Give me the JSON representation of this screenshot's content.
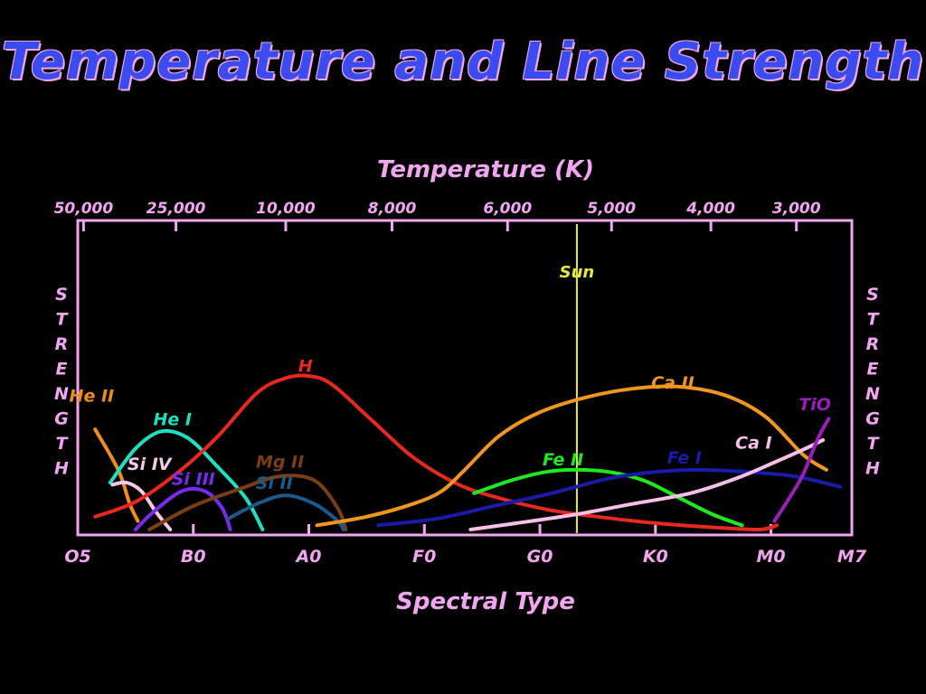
{
  "title": "Temperature and Line Strength",
  "chart_data": {
    "type": "line",
    "title": "Temperature and Line Strength",
    "top_axis_label": "Temperature (K)",
    "xlabel": "Spectral Type",
    "ylabel": "STRENGTH",
    "spectral_ticks": [
      {
        "label": "O5",
        "x": 0
      },
      {
        "label": "B0",
        "x": 1
      },
      {
        "label": "A0",
        "x": 2
      },
      {
        "label": "F0",
        "x": 3
      },
      {
        "label": "G0",
        "x": 4
      },
      {
        "label": "K0",
        "x": 5
      },
      {
        "label": "M0",
        "x": 6
      },
      {
        "label": "M7",
        "x": 6.7
      }
    ],
    "temperature_ticks": [
      {
        "label": "50,000",
        "x": 0.05
      },
      {
        "label": "25,000",
        "x": 0.85
      },
      {
        "label": "10,000",
        "x": 1.8
      },
      {
        "label": "8,000",
        "x": 2.72
      },
      {
        "label": "6,000",
        "x": 3.72
      },
      {
        "label": "5,000",
        "x": 4.62
      },
      {
        "label": "4,000",
        "x": 5.48
      },
      {
        "label": "3,000",
        "x": 6.22
      }
    ],
    "xlim": [
      0,
      6.7
    ],
    "ylim": [
      0,
      1
    ],
    "sun": {
      "label": "Sun",
      "x": 4.32,
      "color": "#e8e83a"
    },
    "series": [
      {
        "name": "He II",
        "color": "#f08c1e",
        "label_at": [
          0.12,
          0.6
        ],
        "points": [
          [
            0.15,
            0.47
          ],
          [
            0.35,
            0.28
          ],
          [
            0.45,
            0.12
          ],
          [
            0.52,
            0.04
          ]
        ]
      },
      {
        "name": "He I",
        "color": "#1ee0c0",
        "label_at": [
          0.82,
          0.49
        ],
        "points": [
          [
            0.28,
            0.22
          ],
          [
            0.5,
            0.38
          ],
          [
            0.72,
            0.46
          ],
          [
            0.95,
            0.43
          ],
          [
            1.2,
            0.3
          ],
          [
            1.45,
            0.15
          ],
          [
            1.6,
            0.0
          ]
        ]
      },
      {
        "name": "Si IV",
        "color": "#f8c8e8",
        "label_at": [
          0.62,
          0.28
        ],
        "points": [
          [
            0.3,
            0.21
          ],
          [
            0.42,
            0.22
          ],
          [
            0.55,
            0.18
          ],
          [
            0.68,
            0.08
          ],
          [
            0.8,
            0.0
          ]
        ]
      },
      {
        "name": "Si III",
        "color": "#7a2af0",
        "label_at": [
          1.0,
          0.21
        ],
        "points": [
          [
            0.5,
            0.0
          ],
          [
            0.65,
            0.08
          ],
          [
            0.9,
            0.18
          ],
          [
            1.1,
            0.18
          ],
          [
            1.25,
            0.1
          ],
          [
            1.32,
            0.0
          ]
        ]
      },
      {
        "name": "Mg II",
        "color": "#7a3e14",
        "label_at": [
          1.75,
          0.29
        ],
        "points": [
          [
            0.62,
            0.0
          ],
          [
            1.0,
            0.11
          ],
          [
            1.4,
            0.19
          ],
          [
            1.75,
            0.25
          ],
          [
            2.05,
            0.23
          ],
          [
            2.25,
            0.1
          ],
          [
            2.32,
            0.0
          ]
        ]
      },
      {
        "name": "Si II",
        "color": "#1a5a8c",
        "label_at": [
          1.7,
          0.19
        ],
        "points": [
          [
            1.3,
            0.05
          ],
          [
            1.55,
            0.12
          ],
          [
            1.8,
            0.16
          ],
          [
            2.05,
            0.12
          ],
          [
            2.25,
            0.04
          ],
          [
            2.3,
            0.0
          ]
        ]
      },
      {
        "name": "H",
        "color": "#e8281e",
        "label_at": [
          1.97,
          0.74
        ],
        "points": [
          [
            0.15,
            0.06
          ],
          [
            0.5,
            0.13
          ],
          [
            0.85,
            0.26
          ],
          [
            1.2,
            0.43
          ],
          [
            1.55,
            0.64
          ],
          [
            1.8,
            0.71
          ],
          [
            2.0,
            0.72
          ],
          [
            2.2,
            0.68
          ],
          [
            2.55,
            0.51
          ],
          [
            2.9,
            0.34
          ],
          [
            3.3,
            0.21
          ],
          [
            3.7,
            0.14
          ],
          [
            4.1,
            0.09
          ],
          [
            4.5,
            0.06
          ],
          [
            5.0,
            0.03
          ],
          [
            5.5,
            0.01
          ],
          [
            5.9,
            0.0
          ],
          [
            6.05,
            0.02
          ]
        ]
      },
      {
        "name": "Ca II",
        "color": "#f0961e",
        "label_at": [
          5.15,
          0.66
        ],
        "points": [
          [
            2.07,
            0.02
          ],
          [
            2.5,
            0.06
          ],
          [
            2.9,
            0.12
          ],
          [
            3.15,
            0.18
          ],
          [
            3.35,
            0.28
          ],
          [
            3.65,
            0.44
          ],
          [
            4.0,
            0.55
          ],
          [
            4.4,
            0.62
          ],
          [
            4.8,
            0.66
          ],
          [
            5.2,
            0.67
          ],
          [
            5.6,
            0.63
          ],
          [
            5.95,
            0.53
          ],
          [
            6.28,
            0.35
          ],
          [
            6.48,
            0.28
          ]
        ]
      },
      {
        "name": "Fe II",
        "color": "#1ee81e",
        "label_at": [
          4.2,
          0.3
        ],
        "points": [
          [
            3.43,
            0.17
          ],
          [
            3.75,
            0.23
          ],
          [
            4.05,
            0.27
          ],
          [
            4.3,
            0.28
          ],
          [
            4.6,
            0.27
          ],
          [
            4.9,
            0.23
          ],
          [
            5.2,
            0.15
          ],
          [
            5.5,
            0.07
          ],
          [
            5.75,
            0.02
          ]
        ]
      },
      {
        "name": "Fe I",
        "color": "#1a1aa8",
        "label_at": [
          5.25,
          0.31
        ],
        "points": [
          [
            2.6,
            0.02
          ],
          [
            3.1,
            0.05
          ],
          [
            3.6,
            0.11
          ],
          [
            4.1,
            0.17
          ],
          [
            4.6,
            0.24
          ],
          [
            5.0,
            0.27
          ],
          [
            5.35,
            0.28
          ],
          [
            5.8,
            0.27
          ],
          [
            6.2,
            0.25
          ],
          [
            6.6,
            0.2
          ]
        ]
      },
      {
        "name": "Ca I",
        "color": "#f8c0e8",
        "label_at": [
          5.85,
          0.38
        ],
        "points": [
          [
            3.4,
            0.0
          ],
          [
            3.8,
            0.03
          ],
          [
            4.3,
            0.07
          ],
          [
            4.8,
            0.12
          ],
          [
            5.3,
            0.17
          ],
          [
            5.7,
            0.24
          ],
          [
            6.05,
            0.32
          ],
          [
            6.3,
            0.38
          ],
          [
            6.45,
            0.42
          ]
        ]
      },
      {
        "name": "TiO",
        "color": "#9a1eb8",
        "label_at": [
          6.38,
          0.56
        ],
        "points": [
          [
            6.03,
            0.04
          ],
          [
            6.15,
            0.14
          ],
          [
            6.28,
            0.26
          ],
          [
            6.4,
            0.42
          ],
          [
            6.5,
            0.52
          ]
        ]
      }
    ]
  }
}
